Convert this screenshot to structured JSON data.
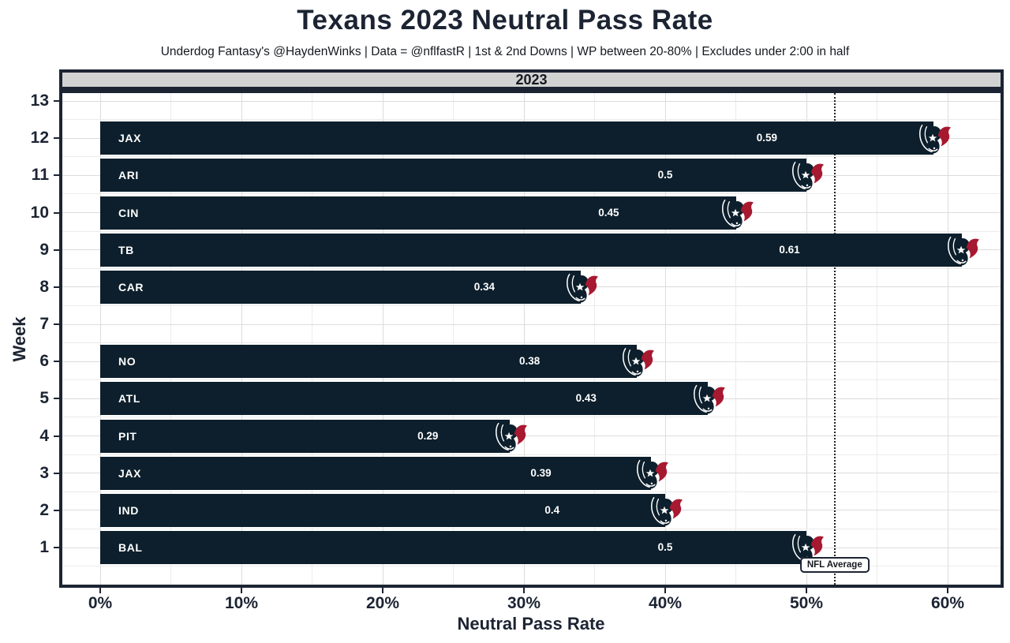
{
  "title": "Texans 2023 Neutral Pass Rate",
  "subtitle": "Underdog Fantasy's @HaydenWinks | Data = @nflfastR | 1st & 2nd Downs | WP between 20-80% | Excludes under 2:00 in half",
  "facet_label": "2023",
  "chart_data": {
    "type": "bar",
    "orientation": "horizontal",
    "title": "Texans 2023 Neutral Pass Rate",
    "xlabel": "Neutral Pass Rate",
    "ylabel": "Week",
    "x_ticks": [
      {
        "value": 0,
        "label": "0%"
      },
      {
        "value": 10,
        "label": "10%"
      },
      {
        "value": 20,
        "label": "20%"
      },
      {
        "value": 30,
        "label": "30%"
      },
      {
        "value": 40,
        "label": "40%"
      },
      {
        "value": 50,
        "label": "50%"
      },
      {
        "value": 60,
        "label": "60%"
      }
    ],
    "xlim_pct": [
      -2.7,
      63.8
    ],
    "y_ticks": [
      13,
      12,
      11,
      10,
      9,
      8,
      7,
      6,
      5,
      4,
      3,
      2,
      1
    ],
    "grid": true,
    "legend": false,
    "rows": [
      {
        "week": 12,
        "opponent": "JAX",
        "value": 0.59,
        "label": "0.59"
      },
      {
        "week": 11,
        "opponent": "ARI",
        "value": 0.5,
        "label": "0.5"
      },
      {
        "week": 10,
        "opponent": "CIN",
        "value": 0.45,
        "label": "0.45"
      },
      {
        "week": 9,
        "opponent": "TB",
        "value": 0.61,
        "label": "0.61"
      },
      {
        "week": 8,
        "opponent": "CAR",
        "value": 0.34,
        "label": "0.34"
      },
      {
        "week": 6,
        "opponent": "NO",
        "value": 0.38,
        "label": "0.38"
      },
      {
        "week": 5,
        "opponent": "ATL",
        "value": 0.43,
        "label": "0.43"
      },
      {
        "week": 4,
        "opponent": "PIT",
        "value": 0.29,
        "label": "0.29"
      },
      {
        "week": 3,
        "opponent": "JAX",
        "value": 0.39,
        "label": "0.39"
      },
      {
        "week": 2,
        "opponent": "IND",
        "value": 0.4,
        "label": "0.4"
      },
      {
        "week": 1,
        "opponent": "BAL",
        "value": 0.5,
        "label": "0.5"
      }
    ],
    "reference_line": {
      "value_pct": 52,
      "label": "NFL Average",
      "style": "dotted"
    }
  },
  "colors": {
    "bar_fill": "#0d1f2c",
    "logo_red": "#a71930",
    "text_dark": "#1c2433",
    "strip_fill": "#d2d2d2",
    "grid_major": "#dcdcdc",
    "grid_minor": "#ebebeb",
    "ref_line": "#222222"
  }
}
